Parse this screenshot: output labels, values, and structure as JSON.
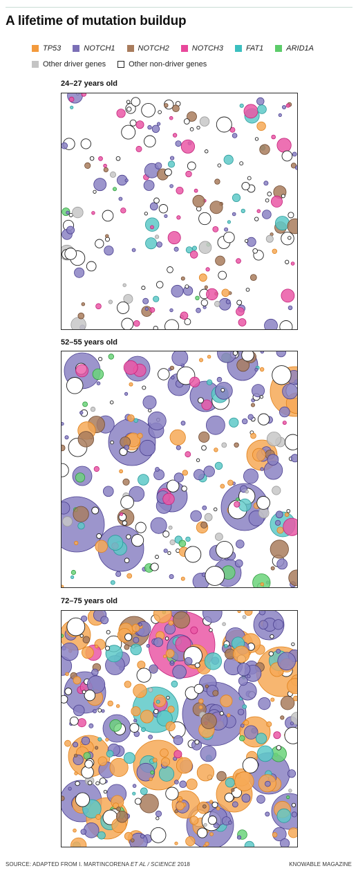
{
  "title": "A lifetime of mutation buildup",
  "legend": {
    "row1": [
      {
        "label": "TP53",
        "color": "#f39a3d",
        "italic": true
      },
      {
        "label": "NOTCH1",
        "color": "#7b6fb6",
        "italic": true
      },
      {
        "label": "NOTCH2",
        "color": "#a97c5d",
        "italic": true
      },
      {
        "label": "NOTCH3",
        "color": "#e8489b",
        "italic": true
      },
      {
        "label": "FAT1",
        "color": "#3bbfbf",
        "italic": true
      },
      {
        "label": "ARID1A",
        "color": "#5ccc6a",
        "italic": true
      }
    ],
    "row2": [
      {
        "label": "Other driver genes",
        "color": "#c4c4c4",
        "italic": false
      },
      {
        "label": "Other non-driver genes",
        "color": "#ffffff",
        "italic": false
      }
    ]
  },
  "panels": [
    {
      "label": "24–27 years old"
    },
    {
      "label": "52–55 years old"
    },
    {
      "label": "72–75 years old"
    }
  ],
  "chart_data": {
    "type": "scatter",
    "encoding": "bubble packing; each circle is a mutant cell clone, colored by mutated gene, sized by clone area",
    "series": [
      {
        "name": "TP53",
        "color": "#f39a3d"
      },
      {
        "name": "NOTCH1",
        "color": "#7b6fb6"
      },
      {
        "name": "NOTCH2",
        "color": "#a97c5d"
      },
      {
        "name": "NOTCH3",
        "color": "#e8489b"
      },
      {
        "name": "FAT1",
        "color": "#3bbfbf"
      },
      {
        "name": "ARID1A",
        "color": "#5ccc6a"
      },
      {
        "name": "Other driver genes",
        "color": "#c4c4c4"
      },
      {
        "name": "Other non-driver genes",
        "color": "#ffffff"
      }
    ],
    "panels": [
      "24–27 years old",
      "52–55 years old",
      "72–75 years old"
    ]
  },
  "footer": {
    "source_prefix": "SOURCE: ADAPTED FROM I. MARTINCORENA ",
    "source_italic": "ET AL / SCIENCE",
    "source_suffix": " 2018",
    "credit": "KNOWABLE MAGAZINE"
  }
}
